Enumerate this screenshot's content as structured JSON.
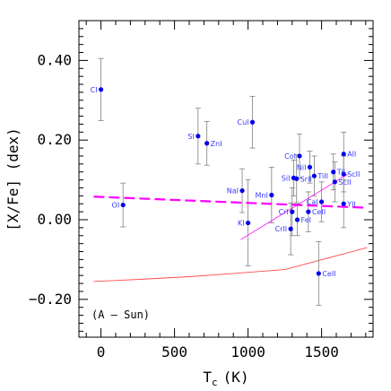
{
  "chart_data": {
    "type": "scatter",
    "title": "",
    "annotation": "(A – Sun)",
    "xlabel": "T",
    "xlabel_sub": "c",
    "xlabel_unit": "(K)",
    "ylabel": "[X/Fe] (dex)",
    "xlim": [
      -150,
      1850
    ],
    "ylim": [
      -0.295,
      0.5
    ],
    "xticks": [
      0,
      500,
      1000,
      1500
    ],
    "xtick_labels": [
      "0",
      "500",
      "1000",
      "1500"
    ],
    "yticks": [
      -0.2,
      0.0,
      0.2,
      0.4
    ],
    "ytick_labels": [
      "−0.20",
      "0.00",
      "0.20",
      "0.40"
    ],
    "points": [
      {
        "label": "CI",
        "x": 0,
        "y": 0.327,
        "err": 0.078
      },
      {
        "label": "OI",
        "x": 150,
        "y": 0.037,
        "err": 0.055
      },
      {
        "label": "SI",
        "x": 660,
        "y": 0.21,
        "err": 0.07
      },
      {
        "label": "ZnI",
        "x": 720,
        "y": 0.192,
        "err": 0.055
      },
      {
        "label": "NaI",
        "x": 960,
        "y": 0.073,
        "err": 0.055
      },
      {
        "label": "KI",
        "x": 1000,
        "y": -0.008,
        "err": 0.108
      },
      {
        "label": "CuI",
        "x": 1030,
        "y": 0.245,
        "err": 0.065
      },
      {
        "label": "MnI",
        "x": 1160,
        "y": 0.062,
        "err": 0.07
      },
      {
        "label": "CrII",
        "x": 1290,
        "y": -0.023,
        "err": 0.065
      },
      {
        "label": "CrI",
        "x": 1300,
        "y": 0.02,
        "err": 0.06
      },
      {
        "label": "SiI",
        "x": 1310,
        "y": 0.105,
        "err": 0.045
      },
      {
        "label": "SrII",
        "x": 1330,
        "y": 0.103,
        "err": 0.06
      },
      {
        "label": "FeI",
        "x": 1335,
        "y": 0.0,
        "err": 0.04
      },
      {
        "label": "CoI",
        "x": 1350,
        "y": 0.16,
        "err": 0.055
      },
      {
        "label": "CeII",
        "x": 1410,
        "y": 0.02,
        "err": 0.05
      },
      {
        "label": "NiI",
        "x": 1420,
        "y": 0.132,
        "err": 0.04
      },
      {
        "label": "TiII",
        "x": 1450,
        "y": 0.11,
        "err": 0.05
      },
      {
        "label": "CeII",
        "x": 1480,
        "y": -0.135,
        "err": 0.08
      },
      {
        "label": "CaI",
        "x": 1500,
        "y": 0.045,
        "err": 0.05
      },
      {
        "label": "TiI",
        "x": 1580,
        "y": 0.12,
        "err": 0.045
      },
      {
        "label": "ScII",
        "x": 1590,
        "y": 0.095,
        "err": 0.05
      },
      {
        "label": "ScII",
        "x": 1650,
        "y": 0.115,
        "err": 0.045
      },
      {
        "label": "AlI",
        "x": 1650,
        "y": 0.165,
        "err": 0.055
      },
      {
        "label": "YII",
        "x": 1650,
        "y": 0.04,
        "err": 0.06
      }
    ],
    "fit_line": {
      "color": "#ff00ff",
      "style": "dashed",
      "x": [
        -50,
        1810
      ],
      "y": [
        0.058,
        0.03
      ]
    },
    "trend_line": {
      "color": "#ff00ff",
      "style": "thin",
      "x": [
        950,
        1680
      ],
      "y": [
        -0.05,
        0.115
      ]
    },
    "model_line": {
      "color": "#ff4d4d",
      "style": "solid",
      "x": [
        -50,
        250,
        600,
        900,
        1250,
        1810
      ],
      "y": [
        -0.155,
        -0.15,
        -0.143,
        -0.135,
        -0.125,
        -0.07
      ]
    },
    "marker_color": "#0000ee",
    "errorbar_color": "#808080",
    "grid": false,
    "legend": "none"
  }
}
